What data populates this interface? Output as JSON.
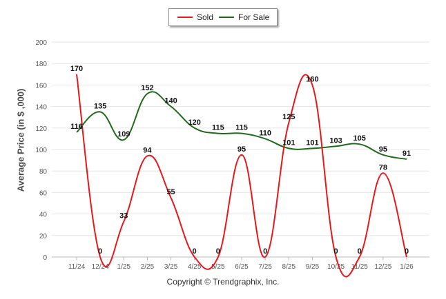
{
  "legend": {
    "sold": "Sold",
    "for_sale": "For Sale"
  },
  "colors": {
    "sold": "#e8171a",
    "for_sale": "#1e6a1b"
  },
  "copyright": "Copyright © Trendgraphix, Inc.",
  "chart_data": {
    "type": "line",
    "title": "",
    "xlabel": "",
    "ylabel": "Average Price (in $ ,000)",
    "ylim": [
      0,
      200
    ],
    "yticks": [
      "0",
      "20",
      "40",
      "60",
      "80",
      "100",
      "120",
      "140",
      "160",
      "180",
      "200"
    ],
    "categories": [
      "11/24",
      "12/24",
      "1/25",
      "2/25",
      "3/25",
      "4/25",
      "5/25",
      "6/25",
      "7/25",
      "8/25",
      "9/25",
      "10/25",
      "11/25",
      "12/25",
      "1/26"
    ],
    "legend_position": "top-center",
    "series": [
      {
        "name": "Sold",
        "values": [
          170,
          0,
          33,
          94,
          55,
          0,
          0,
          95,
          0,
          125,
          160,
          0,
          0,
          78,
          0
        ]
      },
      {
        "name": "For Sale",
        "values": [
          116,
          135,
          109,
          152,
          140,
          120,
          115,
          115,
          110,
          101,
          101,
          103,
          105,
          95,
          91
        ]
      }
    ]
  }
}
